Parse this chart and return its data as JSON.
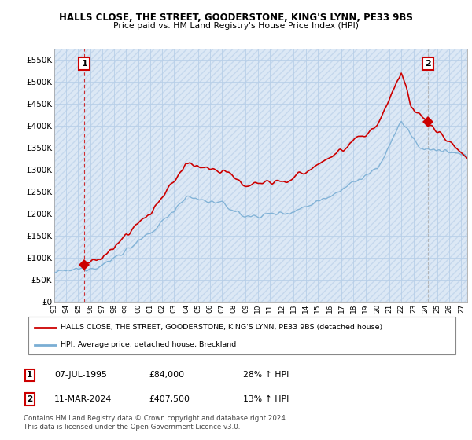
{
  "title": "HALLS CLOSE, THE STREET, GOODERSTONE, KING'S LYNN, PE33 9BS",
  "subtitle": "Price paid vs. HM Land Registry's House Price Index (HPI)",
  "xlim_start": 1993.0,
  "xlim_end": 2027.5,
  "ylim_min": 0,
  "ylim_max": 575000,
  "yticks": [
    0,
    50000,
    100000,
    150000,
    200000,
    250000,
    300000,
    350000,
    400000,
    450000,
    500000,
    550000
  ],
  "ytick_labels": [
    "£0",
    "£50K",
    "£100K",
    "£150K",
    "£200K",
    "£250K",
    "£300K",
    "£350K",
    "£400K",
    "£450K",
    "£500K",
    "£550K"
  ],
  "xticks": [
    1993,
    1994,
    1995,
    1996,
    1997,
    1998,
    1999,
    2000,
    2001,
    2002,
    2003,
    2004,
    2005,
    2006,
    2007,
    2008,
    2009,
    2010,
    2011,
    2012,
    2013,
    2014,
    2015,
    2016,
    2017,
    2018,
    2019,
    2020,
    2021,
    2022,
    2023,
    2024,
    2025,
    2026,
    2027
  ],
  "sale1_x": 1995.52,
  "sale1_y": 84000,
  "sale2_x": 2024.19,
  "sale2_y": 407500,
  "hpi_color": "#7aaed4",
  "price_color": "#cc0000",
  "annotation_color": "#cc0000",
  "dashed_color": "#999999",
  "bg_color": "#dce8f5",
  "grid_color": "#b8cfe8",
  "legend_label1": "HALLS CLOSE, THE STREET, GOODERSTONE, KING'S LYNN, PE33 9BS (detached house)",
  "legend_label2": "HPI: Average price, detached house, Breckland",
  "note1_num": "1",
  "note1_date": "07-JUL-1995",
  "note1_price": "£84,000",
  "note1_hpi": "28% ↑ HPI",
  "note2_num": "2",
  "note2_date": "11-MAR-2024",
  "note2_price": "£407,500",
  "note2_hpi": "13% ↑ HPI",
  "footer": "Contains HM Land Registry data © Crown copyright and database right 2024.\nThis data is licensed under the Open Government Licence v3.0."
}
